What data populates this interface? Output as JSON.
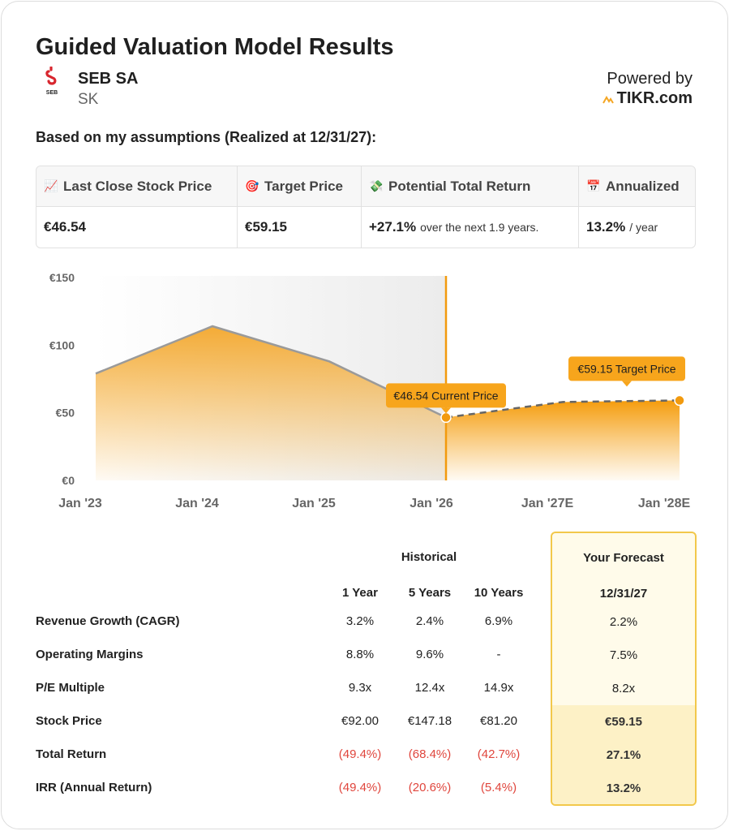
{
  "header": {
    "title": "Guided Valuation Model Results",
    "company": "SEB SA",
    "ticker": "SK",
    "logo_text": "SEB",
    "powered_by": "Powered by",
    "brand": "TIKR.com"
  },
  "subtitle": "Based on my assumptions (Realized at 12/31/27):",
  "metrics": [
    {
      "icon": "chart-increasing-icon",
      "label": "Last Close Stock Price",
      "value": "€46.54",
      "suffix": ""
    },
    {
      "icon": "target-icon",
      "label": "Target Price",
      "value": "€59.15",
      "suffix": ""
    },
    {
      "icon": "money-wings-icon",
      "label": "Potential Total Return",
      "value": "+27.1%",
      "suffix": "over the next 1.9 years."
    },
    {
      "icon": "calendar-icon",
      "label": "Annualized",
      "value": "13.2%",
      "suffix": "/ year"
    }
  ],
  "chart_data": {
    "type": "area",
    "x_labels": [
      "Jan '23",
      "Jan '24",
      "Jan '25",
      "Jan '26",
      "Jan '27E",
      "Jan '28E"
    ],
    "y_tick_labels": [
      "€0",
      "€50",
      "€100",
      "€150"
    ],
    "ylim": [
      0,
      150
    ],
    "historical": {
      "x": [
        2023.0,
        2024.0,
        2025.0,
        2026.0
      ],
      "values": [
        79,
        114,
        88,
        46.54
      ]
    },
    "forecast": {
      "x": [
        2026.0,
        2027.0,
        2028.0
      ],
      "values": [
        46.54,
        58,
        59.15
      ]
    },
    "annotations": [
      {
        "label": "€46.54 Current Price",
        "value": 46.54
      },
      {
        "label": "€59.15 Target Price",
        "value": 59.15
      }
    ],
    "colors": {
      "area": "#f5a623",
      "historical_line": "#9a9a9a",
      "marker": "#f29a0e"
    }
  },
  "table": {
    "historical_header": "Historical",
    "forecast_header": "Your Forecast",
    "columns": [
      "1 Year",
      "5 Years",
      "10 Years"
    ],
    "forecast_date": "12/31/27",
    "rows": [
      {
        "label": "Revenue Growth (CAGR)",
        "values": [
          "3.2%",
          "2.4%",
          "6.9%"
        ],
        "forecast": "2.2%",
        "negative": false,
        "bold_forecast": false
      },
      {
        "label": "Operating Margins",
        "values": [
          "8.8%",
          "9.6%",
          "-"
        ],
        "forecast": "7.5%",
        "negative": false,
        "bold_forecast": false
      },
      {
        "label": "P/E Multiple",
        "values": [
          "9.3x",
          "12.4x",
          "14.9x"
        ],
        "forecast": "8.2x",
        "negative": false,
        "bold_forecast": false
      },
      {
        "label": "Stock Price",
        "values": [
          "€92.00",
          "€147.18",
          "€81.20"
        ],
        "forecast": "€59.15",
        "negative": false,
        "bold_forecast": true
      },
      {
        "label": "Total Return",
        "values": [
          "(49.4%)",
          "(68.4%)",
          "(42.7%)"
        ],
        "forecast": "27.1%",
        "negative": true,
        "bold_forecast": true
      },
      {
        "label": "IRR (Annual Return)",
        "values": [
          "(49.4%)",
          "(20.6%)",
          "(5.4%)"
        ],
        "forecast": "13.2%",
        "negative": true,
        "bold_forecast": true
      }
    ]
  }
}
